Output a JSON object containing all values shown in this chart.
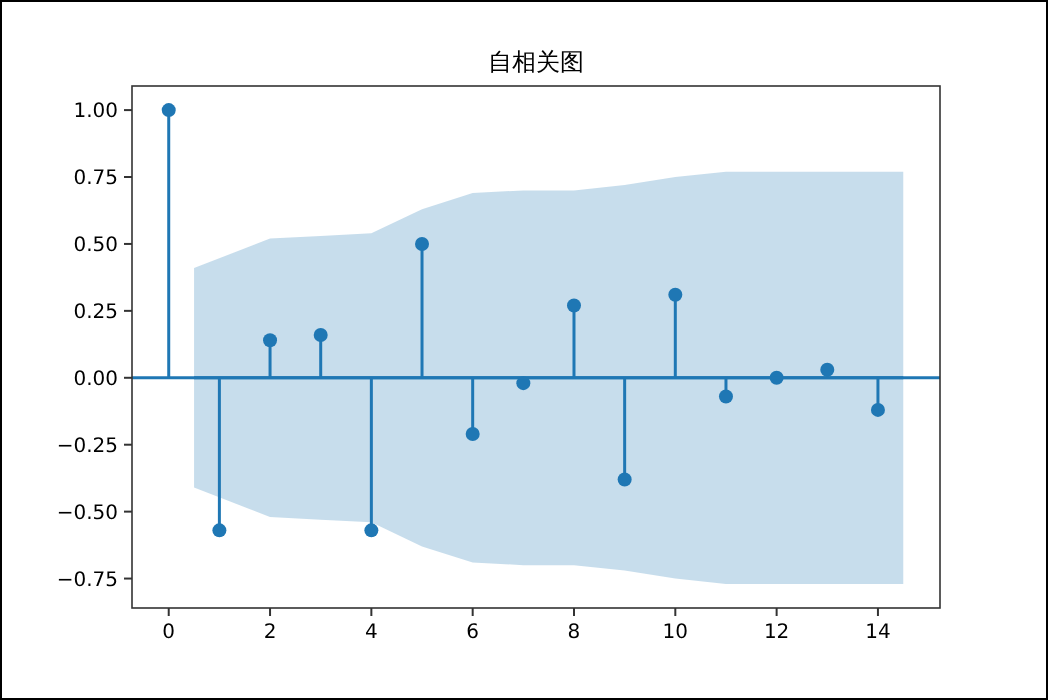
{
  "chart_data": {
    "type": "lollipop",
    "title": "自相关图",
    "x": [
      0,
      1,
      2,
      3,
      4,
      5,
      6,
      7,
      8,
      9,
      10,
      11,
      12,
      13,
      14
    ],
    "series": [
      {
        "color": "#1f77b4",
        "values": [
          1.0,
          -0.57,
          0.14,
          0.16,
          -0.57,
          0.5,
          -0.21,
          -0.02,
          0.27,
          -0.38,
          0.31,
          -0.07,
          0.0,
          0.03,
          -0.12
        ]
      },
      {
        "type": "line",
        "marker": "none",
        "color": "#1f77b4",
        "x": [
          0.5,
          2,
          3,
          4,
          5,
          6,
          7,
          8,
          9,
          10,
          11,
          12,
          13,
          14.5
        ],
        "values": [
          0,
          0,
          0,
          0,
          0,
          0,
          0,
          0,
          0,
          0,
          0,
          0,
          0,
          0
        ],
        "upper": [
          0.41,
          0.52,
          0.53,
          0.54,
          0.63,
          0.69,
          0.7,
          0.7,
          0.72,
          0.75,
          0.77,
          0.77,
          0.77,
          0.77
        ],
        "lower": [
          -0.41,
          -0.52,
          -0.53,
          -0.54,
          -0.63,
          -0.69,
          -0.7,
          -0.7,
          -0.72,
          -0.75,
          -0.77,
          -0.77,
          -0.77,
          -0.77
        ]
      }
    ],
    "ref_lines": [
      {
        "axis": "y",
        "value": 0,
        "color": "#1f77b4"
      }
    ],
    "xlim": [
      -0.725,
      15.225
    ],
    "xticks": [
      0,
      2,
      4,
      6,
      8,
      10,
      12,
      14
    ],
    "ylim": [
      -0.86,
      1.09
    ],
    "yticks": [
      {
        "value": -0.75,
        "label": "−0.75"
      },
      {
        "value": -0.5,
        "label": "−0.50"
      },
      {
        "value": -0.25,
        "label": "−0.25"
      },
      {
        "value": 0,
        "label": "0.00"
      },
      {
        "value": 0.25,
        "label": "0.25"
      },
      {
        "value": 0.5,
        "label": "0.50"
      },
      {
        "value": 0.75,
        "label": "0.75"
      },
      {
        "value": 1,
        "label": "1.00"
      }
    ],
    "marker": "circle",
    "grid": false
  }
}
